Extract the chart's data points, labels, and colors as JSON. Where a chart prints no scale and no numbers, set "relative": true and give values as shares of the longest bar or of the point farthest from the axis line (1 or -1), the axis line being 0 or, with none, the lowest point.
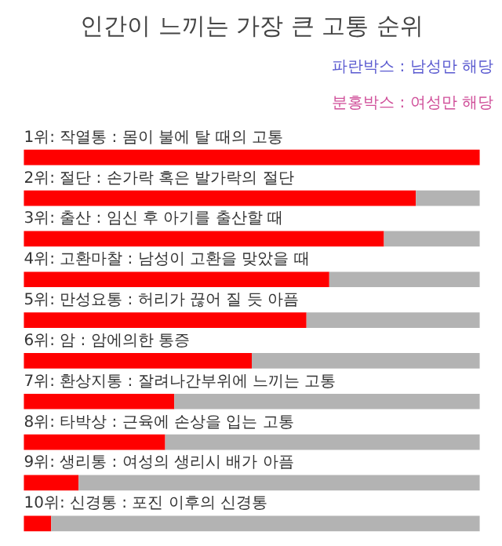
{
  "chart_data": {
    "type": "bar",
    "orientation": "horizontal",
    "stacked": true,
    "relative": true,
    "title": "인간이 느끼는 가장 큰 고통 순위",
    "annotations": [
      "파란박스 : 남성만 해당",
      "분홍박스 : 여성만 해당"
    ],
    "categories": [
      "1위: 작열통 : 몸이 불에 탈 때의 고통",
      "2위: 절단 : 손가락 혹은 발가락의 절단",
      "3위: 출산 : 임신 후 아기를 출산할 때",
      "4위: 고환마찰 : 남성이 고환을 맞았을 때",
      "5위: 만성요통 : 허리가 끊어 질 듯 아픔",
      "6위: 암 : 암에의한 통증",
      "7위: 환상지통 : 잘려나간부위에 느끼는 고통",
      "8위: 타박상 : 근육에 손상을 입는 고통",
      "9위: 생리통 : 여성의 생리시 배가 아픔",
      "10위: 신경통 : 포진 이후의 신경통"
    ],
    "series": [
      {
        "color": "#ff0000",
        "values": [
          1.0,
          0.86,
          0.79,
          0.67,
          0.62,
          0.5,
          0.33,
          0.31,
          0.12,
          0.06
        ]
      },
      {
        "color": "#b3b3b3",
        "values": [
          0.0,
          0.14,
          0.21,
          0.33,
          0.38,
          0.5,
          0.67,
          0.69,
          0.88,
          0.94
        ]
      }
    ]
  }
}
